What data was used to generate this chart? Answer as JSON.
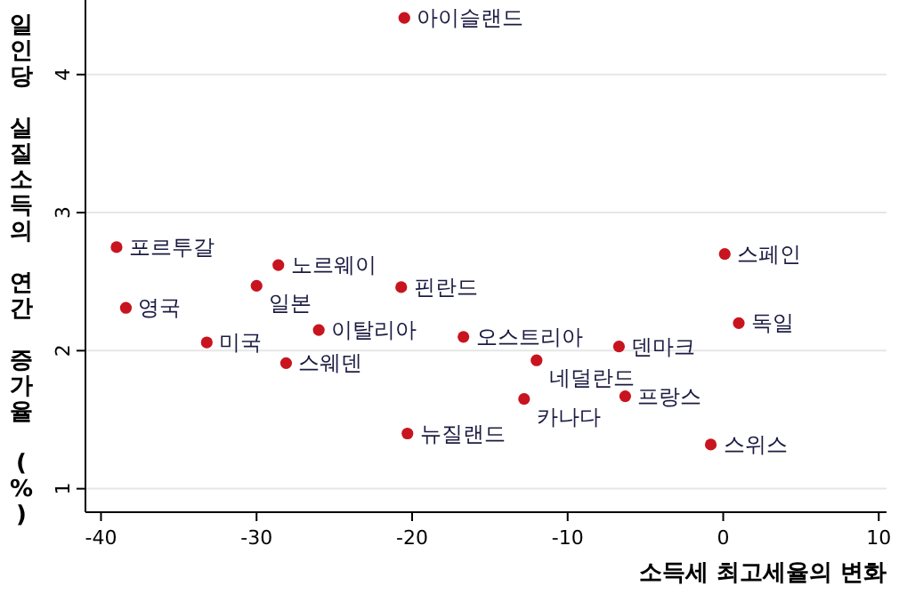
{
  "chart_data": {
    "type": "scatter",
    "xlabel": "소득세 최고세율의 변화",
    "ylabel": "일인당 실질소득의 연간 증가율 (%)",
    "xlim": [
      -41,
      10.5
    ],
    "ylim": [
      0.83,
      4.54
    ],
    "xticks": [
      -40,
      -30,
      -20,
      -10,
      0,
      10
    ],
    "yticks": [
      1,
      2,
      3,
      4
    ],
    "grid": "y",
    "marker": "circle",
    "x": [
      -20.5,
      -39.0,
      -38.4,
      -28.6,
      -30.0,
      -33.2,
      -26.0,
      -28.1,
      -20.7,
      -20.3,
      -16.7,
      -12.0,
      -6.7,
      -12.8,
      -6.3,
      0.1,
      1.0,
      -0.8
    ],
    "values": [
      4.41,
      2.75,
      2.31,
      2.62,
      2.47,
      2.06,
      2.15,
      1.91,
      2.46,
      1.4,
      2.1,
      1.93,
      2.03,
      1.65,
      1.67,
      2.7,
      2.2,
      1.32
    ],
    "color": "#c8141e",
    "annotations": [
      {
        "text": "아이슬랜드",
        "x": -20.5,
        "y": 4.41
      },
      {
        "text": "포르투갈",
        "x": -39.0,
        "y": 2.75
      },
      {
        "text": "영국",
        "x": -38.4,
        "y": 2.31
      },
      {
        "text": "노르웨이",
        "x": -28.6,
        "y": 2.62
      },
      {
        "text": "일본",
        "x": -30.0,
        "y": 2.47
      },
      {
        "text": "미국",
        "x": -33.2,
        "y": 2.06
      },
      {
        "text": "이탈리아",
        "x": -26.0,
        "y": 2.15
      },
      {
        "text": "스웨덴",
        "x": -28.1,
        "y": 1.91
      },
      {
        "text": "핀란드",
        "x": -20.7,
        "y": 2.46
      },
      {
        "text": "뉴질랜드",
        "x": -20.3,
        "y": 1.4
      },
      {
        "text": "오스트리아",
        "x": -16.7,
        "y": 2.1
      },
      {
        "text": "네덜란드",
        "x": -12.0,
        "y": 1.93
      },
      {
        "text": "덴마크",
        "x": -6.7,
        "y": 2.03
      },
      {
        "text": "카나다",
        "x": -12.8,
        "y": 1.65
      },
      {
        "text": "프랑스",
        "x": -6.3,
        "y": 1.67
      },
      {
        "text": "스페인",
        "x": 0.1,
        "y": 2.7
      },
      {
        "text": "독일",
        "x": 1.0,
        "y": 2.2
      },
      {
        "text": "스위스",
        "x": -0.8,
        "y": 1.32
      }
    ]
  }
}
